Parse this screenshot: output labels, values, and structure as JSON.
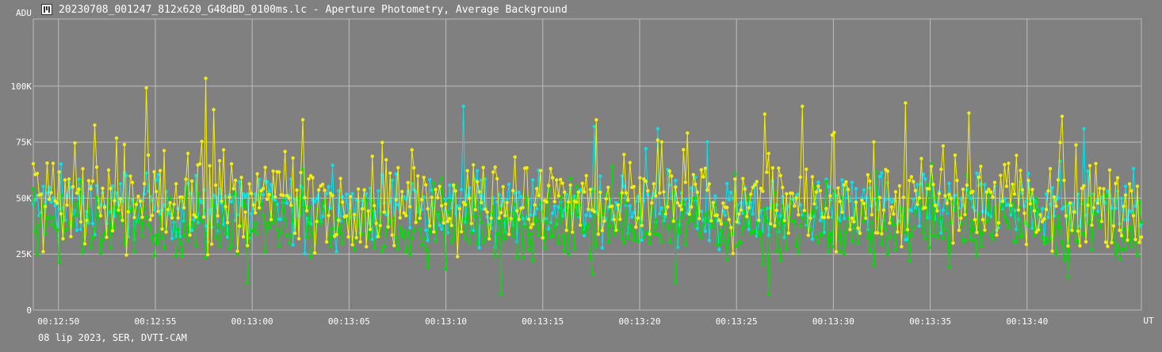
{
  "window": {
    "title": "20230708_001247_812x620_G48dBD_0100ms.lc - Aperture Photometry, Average Background",
    "icon": "app-icon"
  },
  "footer": {
    "text": "08 lip 2023, SER, DVTI-CAM"
  },
  "chart_data": {
    "type": "line",
    "title": "20230708_001247_812x620_G48dBD_0100ms.lc - Aperture Photometry, Average Background",
    "ylabel": "ADU",
    "xlabel": "UT",
    "ylim": [
      0,
      130000
    ],
    "xlim": [
      "00:12:48.7",
      "00:13:45.9"
    ],
    "yticks": [
      {
        "value": 0,
        "label": "0"
      },
      {
        "value": 25000,
        "label": "25K"
      },
      {
        "value": 50000,
        "label": "50K"
      },
      {
        "value": 75000,
        "label": "75K"
      },
      {
        "value": 100000,
        "label": "100K"
      }
    ],
    "xticks": [
      "00:12:50",
      "00:12:55",
      "00:13:00",
      "00:13:05",
      "00:13:10",
      "00:13:15",
      "00:13:20",
      "00:13:25",
      "00:13:30",
      "00:13:35",
      "00:13:40"
    ],
    "grid": true,
    "series": [
      {
        "color": "#00e5ee",
        "mean": 46000,
        "spread": 10000,
        "peaks": [
          {
            "t": "00:13:10.9",
            "v": 91000
          },
          {
            "t": "00:13:17.7",
            "v": 82000
          },
          {
            "t": "00:13:20.9",
            "v": 81000
          },
          {
            "t": "00:13:42.9",
            "v": 81000
          }
        ]
      },
      {
        "color": "#00e000",
        "mean": 38000,
        "spread": 11000,
        "peaks": [
          {
            "t": "00:13:12.9",
            "v": 7000
          },
          {
            "t": "00:13:26.7",
            "v": 7000
          },
          {
            "t": "00:12:59.7",
            "v": 12000
          }
        ]
      },
      {
        "color": "#f5ee00",
        "mean": 49000,
        "spread": 15000,
        "peaks": [
          {
            "t": "00:12:57.6",
            "v": 103500
          },
          {
            "t": "00:12:58.0",
            "v": 89500
          },
          {
            "t": "00:13:33.7",
            "v": 92500
          },
          {
            "t": "00:13:37.0",
            "v": 88000
          },
          {
            "t": "00:13:26.5",
            "v": 87500
          },
          {
            "t": "00:13:02.6",
            "v": 85000
          },
          {
            "t": "00:13:41.8",
            "v": 86500
          },
          {
            "t": "00:13:17.8",
            "v": 85000
          }
        ]
      }
    ]
  }
}
